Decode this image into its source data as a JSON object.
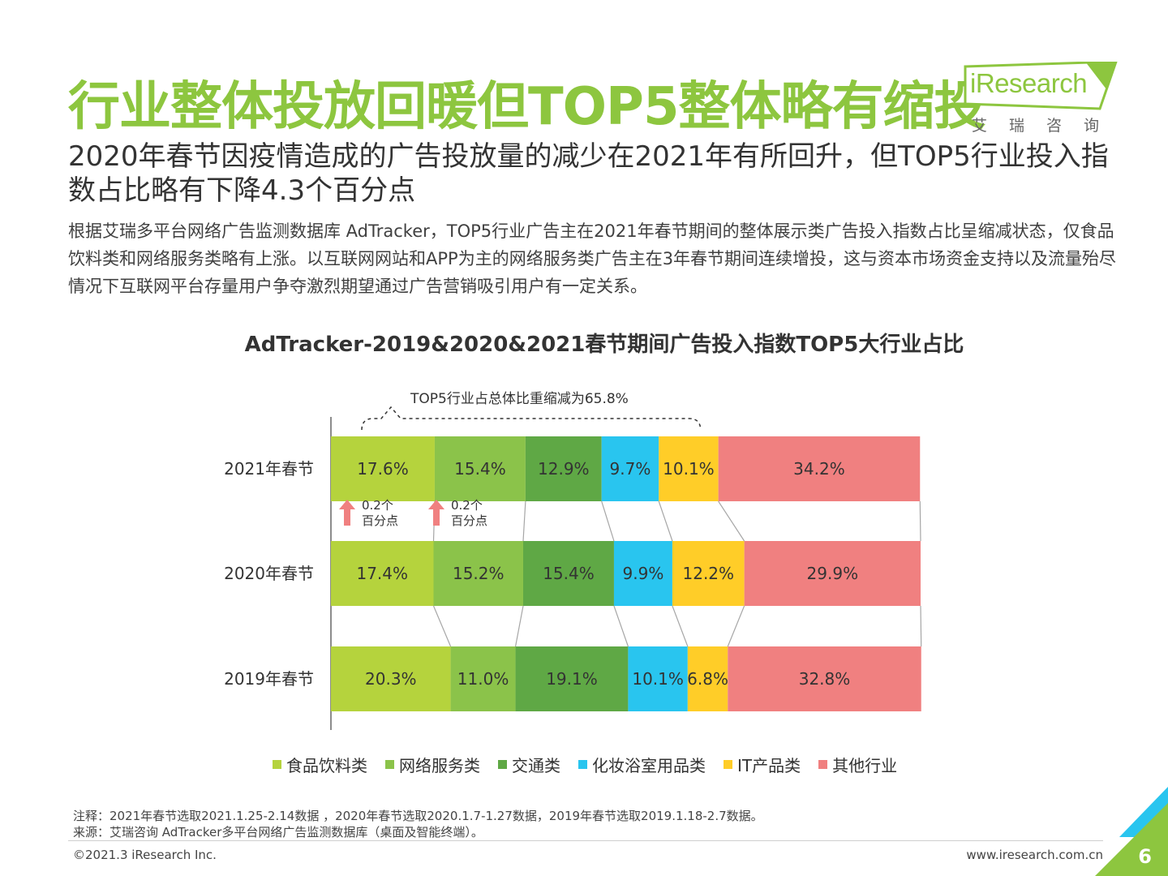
{
  "header": {
    "title": "行业整体投放回暖但TOP5整体略有缩投",
    "logo_name": "iResearch",
    "logo_sub": "艾瑞咨询"
  },
  "subtitle": "2020年春节因疫情造成的广告投放量的减少在2021年有所回升，但TOP5行业投入指数占比略有下降4.3个百分点",
  "body_text": "根据艾瑞多平台网络广告监测数据库 AdTracker，TOP5行业广告主在2021年春节期间的整体展示类广告投入指数占比呈缩减状态，仅食品饮料类和网络服务类略有上涨。以互联网网站和APP为主的网络服务类广告主在3年春节期间连续增投，这与资本市场资金支持以及流量殆尽情况下互联网平台存量用户争夺激烈期望通过广告营销吸引用户有一定关系。",
  "chart_data": {
    "type": "bar",
    "orientation": "horizontal",
    "stacked": true,
    "title": "AdTracker-2019&2020&2021春节期间广告投入指数TOP5大行业占比",
    "categories": [
      "2021年春节",
      "2020年春节",
      "2019年春节"
    ],
    "series": [
      {
        "name": "食品饮料类",
        "color": "#b5d33d",
        "values": [
          17.6,
          17.4,
          20.3
        ],
        "labels": [
          "17.6%",
          "17.4%",
          "20.3%"
        ]
      },
      {
        "name": "网络服务类",
        "color": "#8bc34a",
        "values": [
          15.4,
          15.2,
          11.0
        ],
        "labels": [
          "15.4%",
          "15.2%",
          "11.0%"
        ]
      },
      {
        "name": "交通类",
        "color": "#5fa845",
        "values": [
          12.9,
          15.4,
          19.1
        ],
        "labels": [
          "12.9%",
          "15.4%",
          "19.1%"
        ]
      },
      {
        "name": "化妆浴室用品类",
        "color": "#29c5ef",
        "values": [
          9.7,
          9.9,
          10.1
        ],
        "labels": [
          "9.7%",
          "9.9%",
          "10.1%"
        ]
      },
      {
        "name": "IT产品类",
        "color": "#ffcd28",
        "values": [
          10.1,
          12.2,
          6.8
        ],
        "labels": [
          "10.1%",
          "12.2%",
          "6.8%"
        ]
      },
      {
        "name": "其他行业",
        "color": "#f08080",
        "values": [
          34.2,
          29.9,
          32.8
        ],
        "labels": [
          "34.2%",
          "29.9%",
          "32.8%"
        ]
      }
    ],
    "annotations": [
      {
        "text": "TOP5行业占总体比重缩减为65.8%",
        "type": "brace"
      },
      {
        "text": "0.2个百分点",
        "type": "up-arrow",
        "series": "食品饮料类"
      },
      {
        "text": "0.2个百分点",
        "type": "up-arrow",
        "series": "网络服务类"
      }
    ],
    "legend": "bottom",
    "grid": false
  },
  "footer": {
    "note": "注释：2021年春节选取2021.1.25-2.14数据 ，2020年春节选取2020.1.7-1.27数据，2019年春节选取2019.1.18-2.7数据。",
    "source": "来源：艾瑞咨询 AdTracker多平台网络广告监测数据库（桌面及智能终端）。",
    "copyright": "©2021.3 iResearch Inc.",
    "website": "www.iresearch.com.cn",
    "page_number": "6"
  }
}
